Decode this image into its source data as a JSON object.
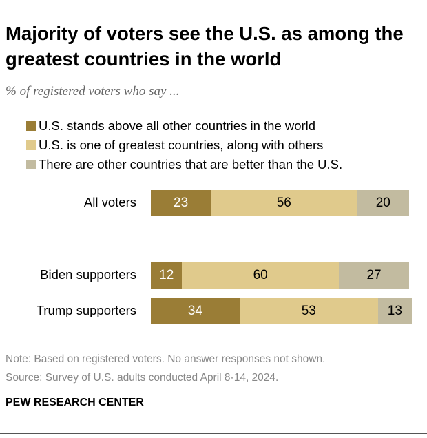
{
  "chart_data": {
    "type": "bar",
    "orientation": "horizontal-stacked",
    "title": "Majority of voters see the U.S. as among the greatest countries in the world",
    "subtitle": "% of registered voters who say ...",
    "categories": [
      "All voters",
      "Biden supporters",
      "Trump supporters"
    ],
    "series": [
      {
        "name": "U.S. stands above all other countries in the world",
        "color": "#9A7D36",
        "label_color": "#ffffff",
        "values": [
          23,
          12,
          34
        ]
      },
      {
        "name": "U.S. is one of greatest countries, along with others",
        "color": "#E0CA8C",
        "label_color": "#000000",
        "values": [
          56,
          60,
          53
        ]
      },
      {
        "name": "There are other countries that are better than the U.S.",
        "color": "#C2BBA0",
        "label_color": "#000000",
        "values": [
          20,
          27,
          13
        ]
      }
    ],
    "xlim": [
      0,
      100
    ],
    "legend": "top-left"
  },
  "note": "Note: Based on registered voters. No answer responses not shown.",
  "source": "Source: Survey of U.S. adults conducted April 8-14, 2024.",
  "brand": "PEW RESEARCH CENTER"
}
